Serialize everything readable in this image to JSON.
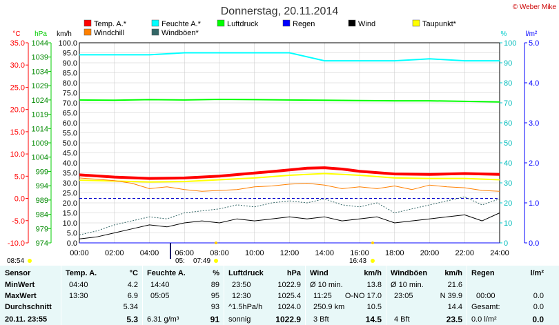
{
  "header": {
    "title": "Donnerstag, 20.11.2014",
    "copyright": "© Weber Mike"
  },
  "legend": [
    {
      "label": "Temp. A.*",
      "color": "#ff0000"
    },
    {
      "label": "Feuchte A.*",
      "color": "#00ffff"
    },
    {
      "label": "Luftdruck",
      "color": "#00ff00"
    },
    {
      "label": "Regen",
      "color": "#0000ff"
    },
    {
      "label": "Wind",
      "color": "#000000"
    },
    {
      "label": "Taupunkt*",
      "color": "#ffff00"
    },
    {
      "label": "Windchill",
      "color": "#ff8000"
    },
    {
      "label": "Windböen*",
      "color": "#336666"
    }
  ],
  "axes": {
    "celsius": {
      "unit": "°C",
      "ticks": [
        "35.0",
        "30.0",
        "25.0",
        "20.0",
        "15.0",
        "10.0",
        "5.0",
        "0.0",
        "-5.0",
        "-10.0"
      ],
      "color": "#ff0000"
    },
    "hpa": {
      "unit": "hPa",
      "ticks": [
        "1044",
        "1039",
        "1034",
        "1029",
        "1024",
        "1019",
        "1014",
        "1009",
        "1004",
        "999",
        "994",
        "989",
        "984",
        "979",
        "974"
      ],
      "color": "#00cc00"
    },
    "kmh": {
      "unit": "km/h",
      "ticks": [
        "100.0",
        "95.0",
        "90.0",
        "85.0",
        "80.0",
        "75.0",
        "70.0",
        "65.0",
        "60.0",
        "55.0",
        "50.0",
        "45.0",
        "40.0",
        "35.0",
        "30.0",
        "25.0",
        "20.0",
        "15.0",
        "10.0",
        "5.0",
        "0.0"
      ]
    },
    "percent": {
      "unit": "%",
      "ticks": [
        "100",
        "90",
        "80",
        "70",
        "60",
        "50",
        "40",
        "30",
        "20",
        "10",
        "0"
      ],
      "color": "#00cccc"
    },
    "rain": {
      "unit": "l/m²",
      "ticks": [
        "5.0",
        "4.0",
        "3.0",
        "2.0",
        "1.0",
        "0.0"
      ],
      "color": "#0000ff"
    },
    "time": {
      "ticks": [
        "00:00",
        "02:00",
        "04:00",
        "06:00",
        "08:00",
        "10:00",
        "12:00",
        "14:00",
        "16:00",
        "18:00",
        "20:00",
        "22:00",
        "24:00"
      ]
    }
  },
  "sun": {
    "rise": "07:49",
    "set": "16:43",
    "twilight_start": "05:",
    "dawn_left": "08:54"
  },
  "chart_data": {
    "type": "line",
    "x_unit": "hour",
    "x_range": [
      0,
      24
    ],
    "series": [
      {
        "name": "Temp. A.*",
        "axis": "celsius",
        "color": "#ff0000",
        "x": [
          0,
          2,
          4,
          6,
          8,
          10,
          12,
          13,
          14,
          15,
          16,
          18,
          20,
          22,
          24
        ],
        "values": [
          5.3,
          4.8,
          4.5,
          4.6,
          5.0,
          5.7,
          6.4,
          6.8,
          6.9,
          6.6,
          6.1,
          5.5,
          5.4,
          5.6,
          5.4
        ]
      },
      {
        "name": "Feuchte A.*",
        "axis": "percent",
        "color": "#00ffff",
        "x": [
          0,
          2,
          4,
          6,
          8,
          10,
          12,
          13,
          14,
          16,
          18,
          20,
          22,
          24
        ],
        "values": [
          94,
          94,
          94,
          95,
          95,
          95,
          95,
          93,
          91,
          91,
          91,
          92,
          91,
          91
        ]
      },
      {
        "name": "Luftdruck",
        "axis": "hpa",
        "color": "#00ff00",
        "x": [
          0,
          2,
          4,
          6,
          8,
          10,
          12,
          14,
          16,
          18,
          20,
          22,
          24
        ],
        "values": [
          1024.0,
          1023.9,
          1024.1,
          1024.0,
          1024.2,
          1024.1,
          1024.0,
          1023.9,
          1023.8,
          1023.7,
          1023.7,
          1023.5,
          1023.3
        ]
      },
      {
        "name": "Taupunkt*",
        "axis": "celsius",
        "color": "#ffff00",
        "x": [
          0,
          2,
          4,
          6,
          8,
          10,
          12,
          14,
          16,
          18,
          20,
          22,
          24
        ],
        "values": [
          4.1,
          3.9,
          3.7,
          3.8,
          4.2,
          4.6,
          5.2,
          5.6,
          5.2,
          4.6,
          4.5,
          4.5,
          4.2
        ]
      },
      {
        "name": "Windchill",
        "axis": "celsius",
        "color": "#ff8000",
        "x": [
          0,
          1,
          2,
          3,
          4,
          5,
          6,
          7,
          8,
          9,
          10,
          11,
          12,
          13,
          14,
          15,
          16,
          17,
          18,
          19,
          20,
          21,
          22,
          23,
          24
        ],
        "values": [
          4.6,
          4.3,
          4.0,
          3.4,
          2.2,
          2.6,
          2.0,
          1.6,
          1.8,
          2.0,
          2.6,
          2.8,
          3.2,
          3.4,
          3.0,
          2.2,
          2.6,
          2.2,
          2.8,
          2.0,
          3.0,
          2.6,
          2.4,
          1.8,
          1.6
        ]
      },
      {
        "name": "Wind",
        "axis": "kmh",
        "color": "#000000",
        "x": [
          0,
          1,
          2,
          3,
          4,
          5,
          6,
          7,
          8,
          9,
          10,
          11,
          12,
          13,
          14,
          15,
          16,
          17,
          18,
          19,
          20,
          21,
          22,
          23,
          24
        ],
        "values": [
          2,
          3,
          5,
          7,
          9,
          8,
          10,
          11,
          10,
          12,
          11,
          12,
          13,
          12,
          13,
          11,
          12,
          13,
          10,
          11,
          12,
          13,
          14,
          11,
          15
        ]
      },
      {
        "name": "Windböen*",
        "axis": "kmh",
        "color": "#336666",
        "x": [
          0,
          1,
          2,
          3,
          4,
          5,
          6,
          7,
          8,
          9,
          10,
          11,
          12,
          13,
          14,
          15,
          16,
          17,
          18,
          19,
          20,
          21,
          22,
          23,
          24
        ],
        "values": [
          4,
          6,
          9,
          11,
          13,
          12,
          15,
          16,
          17,
          19,
          18,
          20,
          21,
          20,
          22,
          19,
          18,
          20,
          15,
          17,
          19,
          21,
          23,
          19,
          22
        ]
      },
      {
        "name": "Regen",
        "axis": "rain",
        "color": "#0000ff",
        "x": [
          0,
          24
        ],
        "values": [
          0,
          0
        ]
      }
    ],
    "reference_line": {
      "axis": "celsius",
      "value": 0.0,
      "color": "#0000cc",
      "style": "dashed"
    },
    "grid": true
  },
  "table": {
    "sensor": {
      "head": "Sensor",
      "min": "MinWert",
      "max": "MaxWert",
      "avg": "Durchschnitt",
      "now": "20.11.  23:55"
    },
    "temp": {
      "head": "Temp. A.",
      "unit": "°C",
      "min_time": "04:40",
      "min_val": "4.2",
      "max_time": "13:30",
      "max_val": "6.9",
      "avg_val": "5.34",
      "now_val": "5.3"
    },
    "hum": {
      "head": "Feuchte A.",
      "unit": "%",
      "min_time": "14:40",
      "min_val": "89",
      "max_time": "05:05",
      "max_val": "95",
      "avg_val": "93",
      "now_label": "6.31 g/m³",
      "now_val": "91"
    },
    "press": {
      "head": "Luftdruck",
      "unit": "hPa",
      "min_time": "23:50",
      "min_val": "1022.9",
      "max_time": "12:30",
      "max_val": "1025.4",
      "avg_label": "^1.5hPa/h",
      "avg_val": "1024.0",
      "now_label": "sonnig",
      "now_val": "1022.9"
    },
    "wind": {
      "head": "Wind",
      "unit": "km/h",
      "min_label": "Ø 10 min.",
      "min_val": "13.8",
      "max_time": "11:25",
      "max_dir": "O-NO 17.0",
      "avg_label": "250.9 km",
      "avg_val": "10.5",
      "now_label": "3 Bft",
      "now_val": "14.5"
    },
    "gust": {
      "head": "Windböen",
      "unit": "km/h",
      "min_label": "Ø 10 min.",
      "min_val": "21.6",
      "max_time": "23:05",
      "max_dir": "N 39.9",
      "avg_val": "14.4",
      "now_label": "4 Bft",
      "now_val": "23.5"
    },
    "rain": {
      "head": "Regen",
      "unit": "l/m²",
      "max_time": "00:00",
      "max_val": "0.0",
      "avg_label": "Gesamt:",
      "avg_val": "0.0",
      "now_label": "0.0 l/m²",
      "now_val": "0.0"
    }
  }
}
